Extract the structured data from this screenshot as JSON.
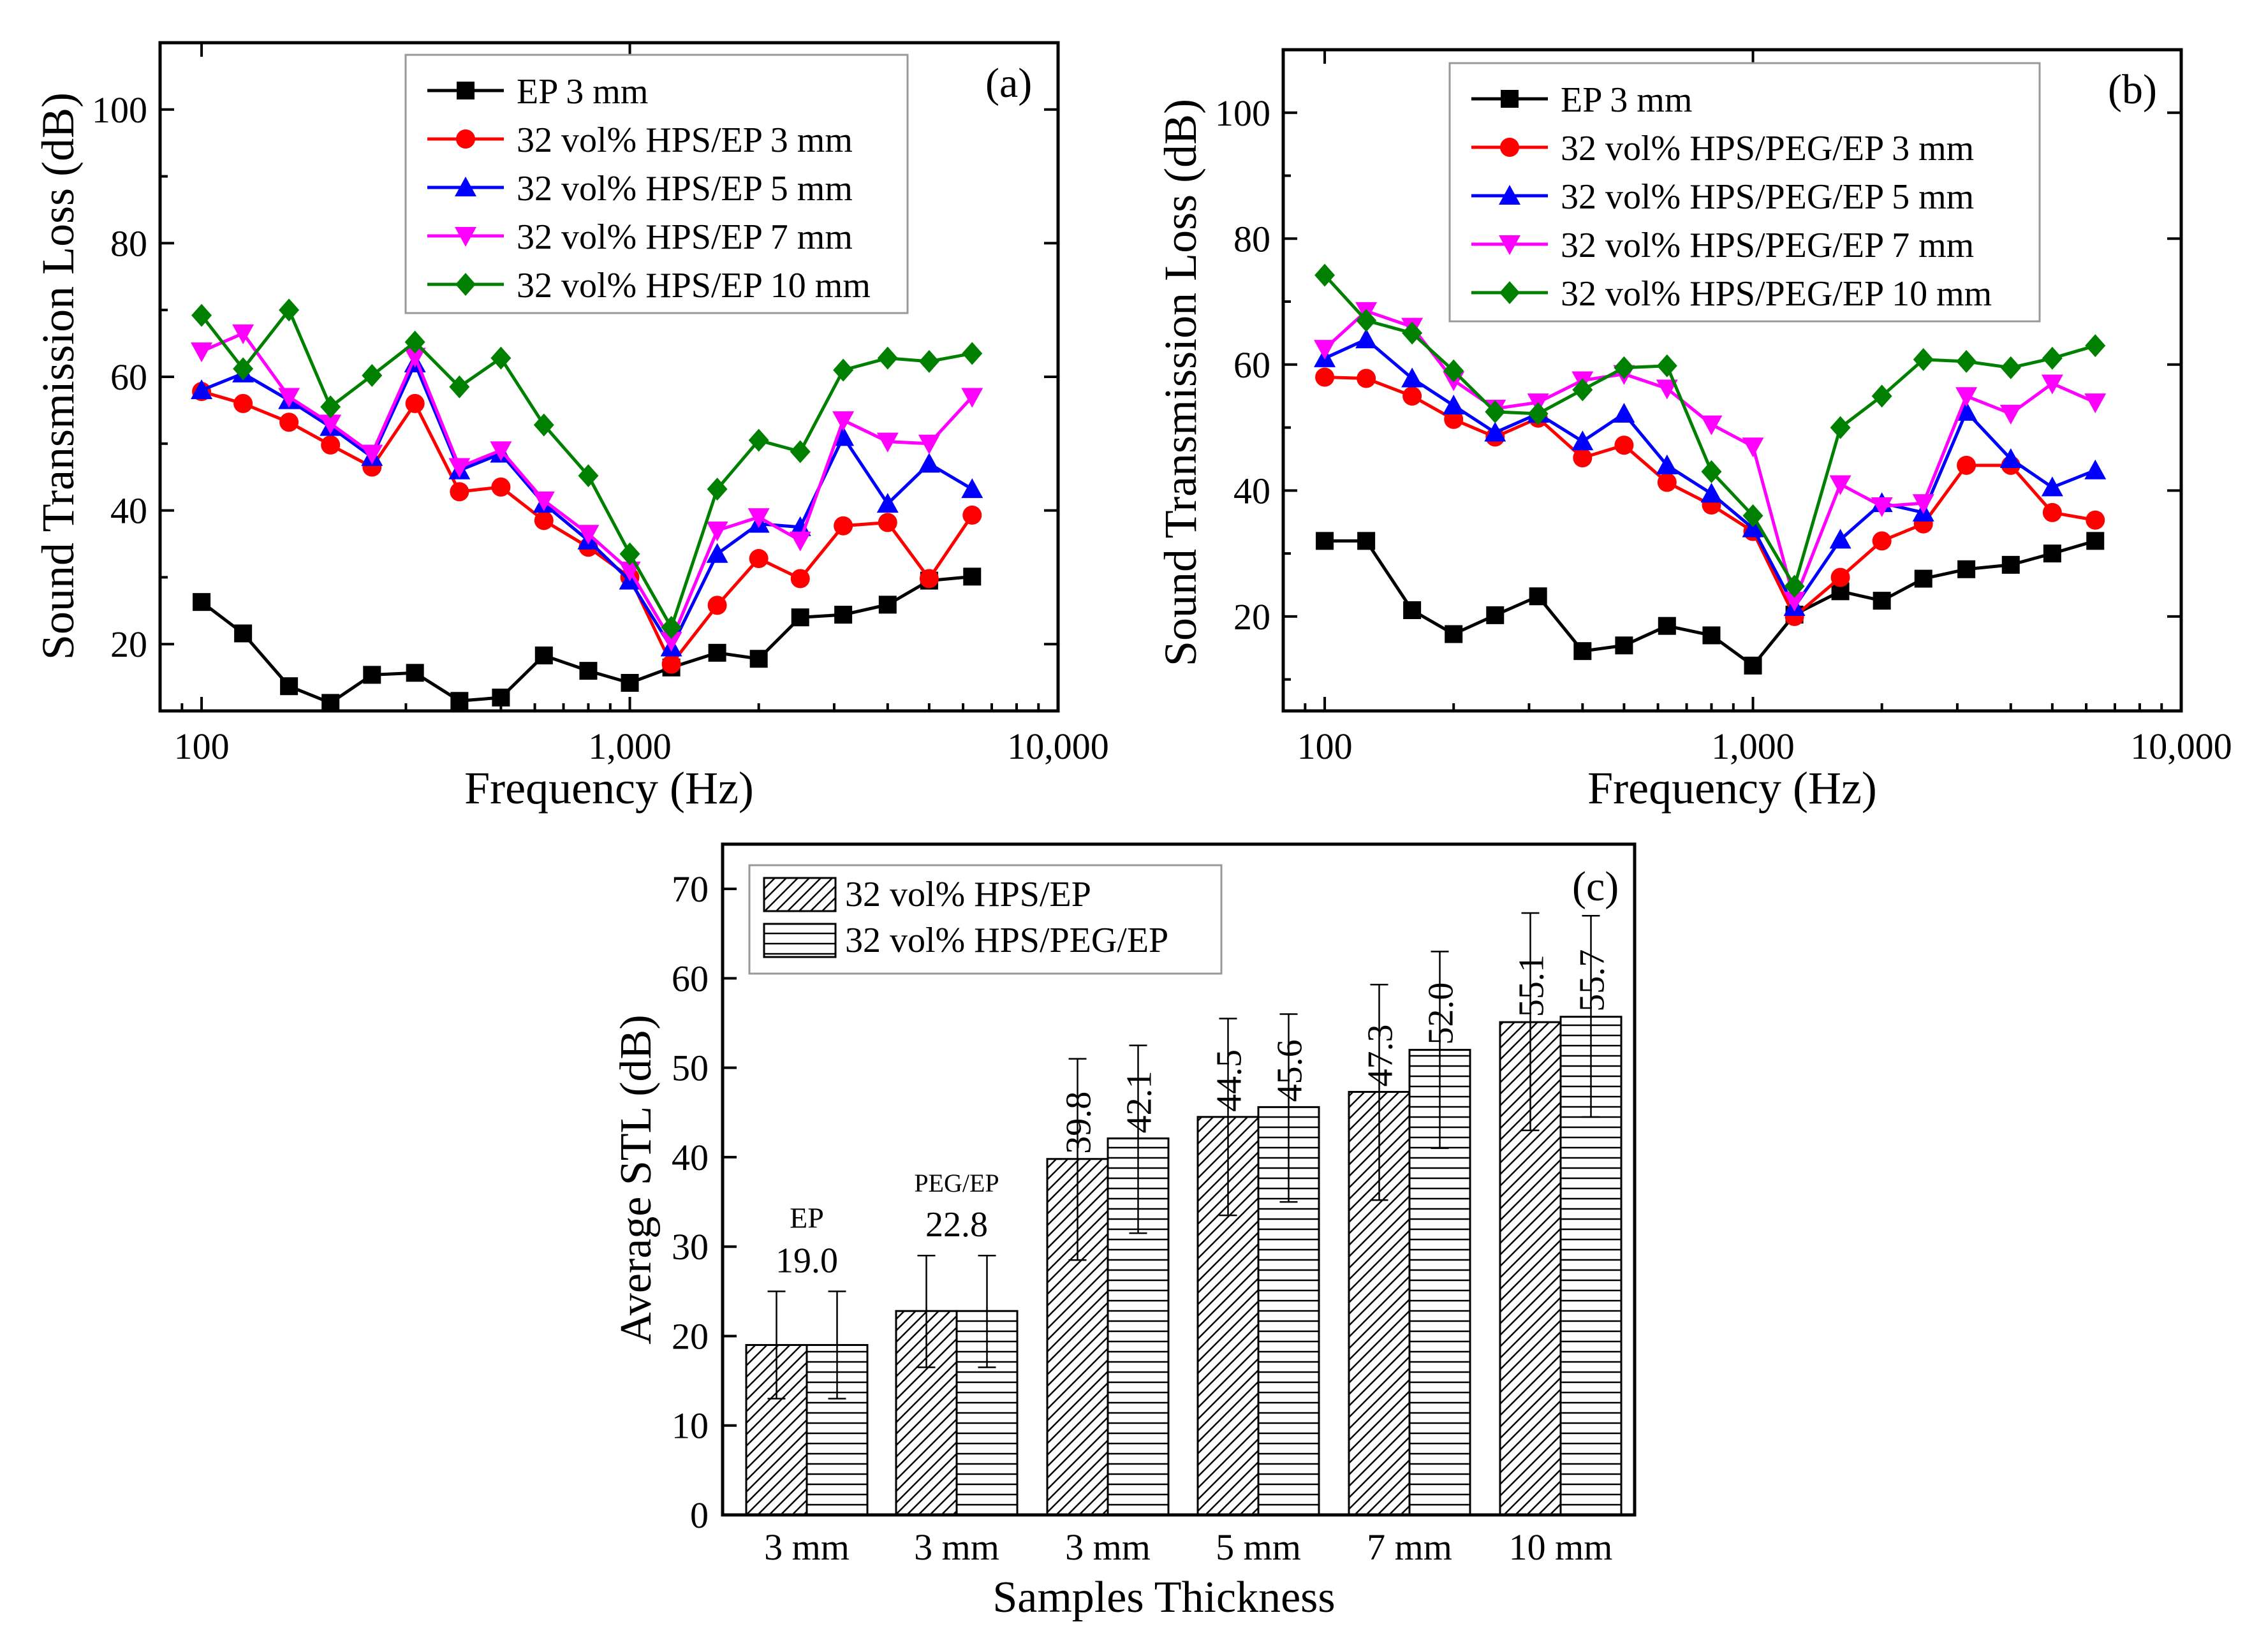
{
  "figure_desc": "Three-panel chart: sound transmission loss vs frequency for HPS/EP and HPS/PEG/EP composites, and average STL bar chart",
  "colors": {
    "black": "#000000",
    "red": "#ff0000",
    "blue": "#0000ff",
    "magenta": "#ff00ff",
    "green": "#008000"
  },
  "chart_data": [
    {
      "id": "a",
      "panel_label": "(a)",
      "type": "line",
      "xscale": "log",
      "xlabel": "Frequency (Hz)",
      "ylabel": "Sound Transmission Loss (dB)",
      "xlim": [
        80,
        10000
      ],
      "ylim": [
        10,
        110
      ],
      "xticks": [
        100,
        1000,
        10000
      ],
      "xtick_labels": [
        "100",
        "1,000",
        "10,000"
      ],
      "yticks": [
        20,
        40,
        60,
        80,
        100
      ],
      "ytick_labels": [
        "20",
        "40",
        "60",
        "80",
        "100"
      ],
      "legend_position": "top-center",
      "x": [
        100,
        125,
        160,
        200,
        250,
        315,
        400,
        500,
        630,
        800,
        1000,
        1250,
        1600,
        2000,
        2500,
        3150,
        4000,
        5000,
        6300
      ],
      "series": [
        {
          "name": "EP 3 mm",
          "color": "#000000",
          "marker": "square",
          "values": [
            26.3,
            21.6,
            13.7,
            11.2,
            15.4,
            15.7,
            11.5,
            12.0,
            18.3,
            16.0,
            14.2,
            16.5,
            18.7,
            17.8,
            24.0,
            24.4,
            25.9,
            29.5,
            30.1
          ]
        },
        {
          "name": "32 vol% HPS/EP  3 mm",
          "color": "#ff0000",
          "marker": "circle",
          "values": [
            57.8,
            56.0,
            53.2,
            49.8,
            46.5,
            56.0,
            42.8,
            43.5,
            38.5,
            34.5,
            30.0,
            17.0,
            25.8,
            32.8,
            29.8,
            37.7,
            38.2,
            29.8,
            39.3
          ]
        },
        {
          "name": "32 vol% HPS/EP  5 mm",
          "color": "#0000ff",
          "marker": "triangle-up",
          "values": [
            58.0,
            60.5,
            56.5,
            52.5,
            48.0,
            62.0,
            46.0,
            48.5,
            41.0,
            35.5,
            29.5,
            19.5,
            33.5,
            38.0,
            37.5,
            51.0,
            41.0,
            47.0,
            43.2
          ]
        },
        {
          "name": "32 vol% HPS/EP  7 mm",
          "color": "#ff00ff",
          "marker": "triangle-down",
          "values": [
            63.8,
            66.5,
            57.0,
            53.0,
            48.5,
            63.0,
            46.5,
            49.0,
            41.5,
            36.5,
            31.0,
            20.5,
            37.0,
            39.0,
            35.5,
            53.5,
            50.3,
            50.0,
            57.0
          ]
        },
        {
          "name": "32 vol% HPS/EP 10 mm",
          "color": "#008000",
          "marker": "diamond",
          "values": [
            69.2,
            61.2,
            70.0,
            55.5,
            60.2,
            65.2,
            58.5,
            62.8,
            52.8,
            45.2,
            33.5,
            22.5,
            43.2,
            50.5,
            48.8,
            61.0,
            62.8,
            62.3,
            63.5
          ]
        }
      ]
    },
    {
      "id": "b",
      "panel_label": "(b)",
      "type": "line",
      "xscale": "log",
      "xlabel": "Frequency (Hz)",
      "ylabel": "Sound Transmission Loss (dB)",
      "xlim": [
        80,
        10000
      ],
      "ylim": [
        5,
        110
      ],
      "xticks": [
        100,
        1000,
        10000
      ],
      "xtick_labels": [
        "100",
        "1,000",
        "10,000"
      ],
      "yticks": [
        20,
        40,
        60,
        80,
        100
      ],
      "ytick_labels": [
        "20",
        "40",
        "60",
        "80",
        "100"
      ],
      "legend_position": "top-center",
      "x": [
        100,
        125,
        160,
        200,
        250,
        315,
        400,
        500,
        630,
        800,
        1000,
        1250,
        1600,
        2000,
        2500,
        3150,
        4000,
        5000,
        6300
      ],
      "series": [
        {
          "name": "EP 3 mm",
          "color": "#000000",
          "marker": "square",
          "values": [
            32.0,
            32.0,
            21.0,
            17.2,
            20.2,
            23.2,
            14.5,
            15.4,
            18.5,
            17.0,
            12.2,
            20.3,
            24.0,
            22.5,
            26.0,
            27.5,
            28.2,
            30.0,
            32.0
          ]
        },
        {
          "name": "32 vol% HPS/PEG/EP  3 mm",
          "color": "#ff0000",
          "marker": "circle",
          "values": [
            58.0,
            57.8,
            55.0,
            51.3,
            48.5,
            51.5,
            45.2,
            47.2,
            41.3,
            37.7,
            33.5,
            20.0,
            26.2,
            32.0,
            34.7,
            44.0,
            44.0,
            36.5,
            35.3
          ]
        },
        {
          "name": "32 vol% HPS/PEG/EP  5 mm",
          "color": "#0000ff",
          "marker": "triangle-up",
          "values": [
            61.0,
            64.0,
            57.8,
            53.5,
            49.2,
            52.2,
            47.8,
            52.2,
            44.0,
            39.5,
            34.0,
            21.5,
            32.2,
            38.0,
            36.5,
            52.5,
            45.0,
            40.5,
            43.2
          ]
        },
        {
          "name": "32 vol% HPS/PEG/EP  7 mm",
          "color": "#ff00ff",
          "marker": "triangle-down",
          "values": [
            62.5,
            68.5,
            66.0,
            57.5,
            53.0,
            54.0,
            57.5,
            58.5,
            56.2,
            50.5,
            47.0,
            22.5,
            41.0,
            37.5,
            38.0,
            55.0,
            52.2,
            57.0,
            54.0
          ]
        },
        {
          "name": "32 vol% HPS/PEG/EP 10 mm",
          "color": "#008000",
          "marker": "diamond",
          "values": [
            74.2,
            67.0,
            65.0,
            59.0,
            52.5,
            52.2,
            56.0,
            59.5,
            59.8,
            43.0,
            36.0,
            24.8,
            50.0,
            55.0,
            60.8,
            60.5,
            59.5,
            61.0,
            63.0
          ]
        }
      ]
    },
    {
      "id": "c",
      "panel_label": "(c)",
      "type": "bar",
      "xlabel": "Samples Thickness",
      "ylabel": "Average STL (dB)",
      "ylim": [
        0,
        75
      ],
      "yticks": [
        0,
        10,
        20,
        30,
        40,
        50,
        60,
        70
      ],
      "ytick_labels": [
        "0",
        "10",
        "20",
        "30",
        "40",
        "50",
        "60",
        "70"
      ],
      "legend_position": "top-left",
      "categories": [
        "3 mm",
        "3 mm",
        "3 mm",
        "5 mm",
        "7 mm",
        "10 mm"
      ],
      "series": [
        {
          "name": "32 vol% HPS/EP",
          "pattern": "diagonal-hatch",
          "values": [
            19.0,
            22.8,
            39.8,
            44.5,
            47.3,
            55.1
          ],
          "err_upper": [
            25.0,
            29.0,
            51.0,
            55.5,
            59.3,
            67.3
          ],
          "err_lower": [
            13.0,
            16.5,
            28.5,
            33.5,
            35.2,
            43.0
          ]
        },
        {
          "name": "32 vol% HPS/PEG/EP",
          "pattern": "horizontal-hatch",
          "values": [
            19.0,
            22.8,
            42.1,
            45.6,
            52.0,
            55.7
          ],
          "err_upper": [
            25.0,
            29.0,
            52.5,
            56.0,
            63.0,
            67.0
          ],
          "err_lower": [
            13.0,
            16.5,
            31.5,
            35.0,
            41.0,
            44.5
          ]
        }
      ],
      "group_labels": [
        {
          "name": "EP",
          "value": "19.0"
        },
        {
          "name": "PEG/EP",
          "value": "22.8"
        }
      ],
      "bar_value_labels": [
        "39.8",
        "42.1",
        "44.5",
        "45.6",
        "47.3",
        "52.0",
        "55.1",
        "55.7"
      ]
    }
  ]
}
